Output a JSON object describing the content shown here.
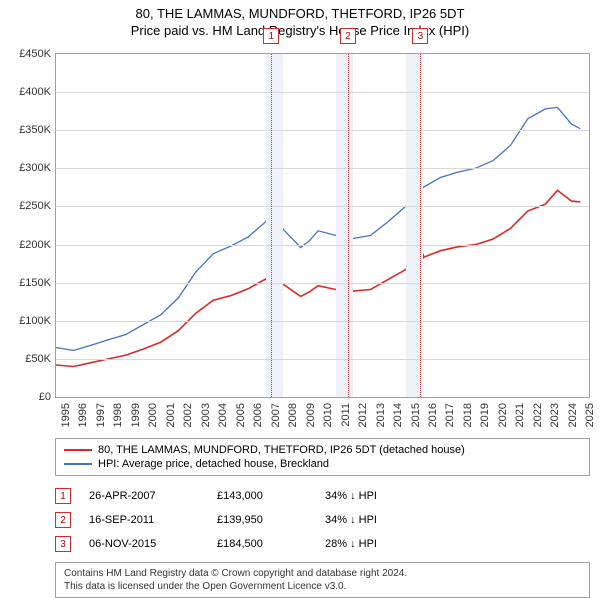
{
  "title": "80, THE LAMMAS, MUNDFORD, THETFORD, IP26 5DT",
  "subtitle": "Price paid vs. HM Land Registry's House Price Index (HPI)",
  "chart": {
    "type": "line",
    "xlim": [
      1995,
      2025.5
    ],
    "ylim": [
      0,
      450000
    ],
    "ytick_step": 50000,
    "ytick_prefix": "£",
    "ytick_suffix": "K",
    "years": [
      1995,
      1996,
      1997,
      1998,
      1999,
      2000,
      2001,
      2002,
      2003,
      2004,
      2005,
      2006,
      2007,
      2008,
      2009,
      2010,
      2011,
      2012,
      2013,
      2014,
      2015,
      2016,
      2017,
      2018,
      2019,
      2020,
      2021,
      2022,
      2023,
      2024,
      2025
    ],
    "grid_color": "#d8d8d8",
    "border_color": "#a0a0a0",
    "background_color": "#ffffff",
    "shade_bands_color": "#eef2f8",
    "shade_bands": [
      [
        2007,
        2008
      ],
      [
        2011,
        2012
      ],
      [
        2015,
        2016
      ]
    ],
    "series": [
      {
        "name": "hpi",
        "color": "#4472c4",
        "width": 1.3,
        "label": "HPI: Average price, detached house, Breckland",
        "points": [
          [
            1995,
            65000
          ],
          [
            1996,
            61000
          ],
          [
            1997,
            68000
          ],
          [
            1998,
            75000
          ],
          [
            1999,
            82000
          ],
          [
            2000,
            95000
          ],
          [
            2001,
            108000
          ],
          [
            2002,
            130000
          ],
          [
            2003,
            164000
          ],
          [
            2004,
            188000
          ],
          [
            2005,
            198000
          ],
          [
            2006,
            210000
          ],
          [
            2007,
            230000
          ],
          [
            2007.5,
            244000
          ],
          [
            2008,
            220000
          ],
          [
            2009,
            196000
          ],
          [
            2009.5,
            205000
          ],
          [
            2010,
            218000
          ],
          [
            2011,
            212000
          ],
          [
            2012,
            208000
          ],
          [
            2013,
            212000
          ],
          [
            2014,
            230000
          ],
          [
            2015,
            250000
          ],
          [
            2016,
            275000
          ],
          [
            2017,
            288000
          ],
          [
            2018,
            295000
          ],
          [
            2019,
            300000
          ],
          [
            2020,
            310000
          ],
          [
            2021,
            330000
          ],
          [
            2022,
            365000
          ],
          [
            2023,
            378000
          ],
          [
            2023.7,
            380000
          ],
          [
            2024.5,
            358000
          ],
          [
            2025,
            352000
          ]
        ]
      },
      {
        "name": "price_paid",
        "color": "#d82a2a",
        "width": 1.6,
        "label": "80, THE LAMMAS, MUNDFORD, THETFORD, IP26 5DT (detached house)",
        "points": [
          [
            1995,
            42000
          ],
          [
            1996,
            40000
          ],
          [
            1997,
            45000
          ],
          [
            1998,
            50000
          ],
          [
            1999,
            55000
          ],
          [
            2000,
            63000
          ],
          [
            2001,
            72000
          ],
          [
            2002,
            87000
          ],
          [
            2003,
            110000
          ],
          [
            2004,
            127000
          ],
          [
            2005,
            133000
          ],
          [
            2006,
            142000
          ],
          [
            2007,
            155000
          ],
          [
            2007.32,
            143000
          ],
          [
            2008,
            148000
          ],
          [
            2009,
            132000
          ],
          [
            2009.5,
            138000
          ],
          [
            2010,
            146000
          ],
          [
            2011,
            141000
          ],
          [
            2011.71,
            139950
          ],
          [
            2012,
            139000
          ],
          [
            2013,
            141000
          ],
          [
            2014,
            154000
          ],
          [
            2015,
            167000
          ],
          [
            2015.85,
            184500
          ],
          [
            2016,
            183000
          ],
          [
            2017,
            192000
          ],
          [
            2018,
            197000
          ],
          [
            2019,
            200000
          ],
          [
            2020,
            207000
          ],
          [
            2021,
            221000
          ],
          [
            2022,
            244000
          ],
          [
            2023,
            253000
          ],
          [
            2023.7,
            271000
          ],
          [
            2024.5,
            257000
          ],
          [
            2025,
            256000
          ]
        ]
      }
    ],
    "markers": [
      {
        "n": "1",
        "x": 2007.32,
        "y": 143000,
        "color": "#d82a2a"
      },
      {
        "n": "2",
        "x": 2011.71,
        "y": 139950,
        "color": "#d82a2a"
      },
      {
        "n": "3",
        "x": 2015.85,
        "y": 184500,
        "color": "#d82a2a"
      }
    ],
    "marker_box_color": "#d82a2a",
    "marker_dot_radius": 4
  },
  "legend": {
    "rows": [
      {
        "color": "#d82a2a",
        "label": "80, THE LAMMAS, MUNDFORD, THETFORD, IP26 5DT (detached house)"
      },
      {
        "color": "#4472c4",
        "label": "HPI: Average price, detached house, Breckland"
      }
    ]
  },
  "transactions": [
    {
      "n": "1",
      "date": "26-APR-2007",
      "price": "£143,000",
      "hpi": "34% ↓ HPI"
    },
    {
      "n": "2",
      "date": "16-SEP-2011",
      "price": "£139,950",
      "hpi": "34% ↓ HPI"
    },
    {
      "n": "3",
      "date": "06-NOV-2015",
      "price": "£184,500",
      "hpi": "28% ↓ HPI"
    }
  ],
  "transactions_marker_color": "#d82a2a",
  "footer": {
    "line1": "Contains HM Land Registry data © Crown copyright and database right 2024.",
    "line2": "This data is licensed under the Open Government Licence v3.0."
  }
}
